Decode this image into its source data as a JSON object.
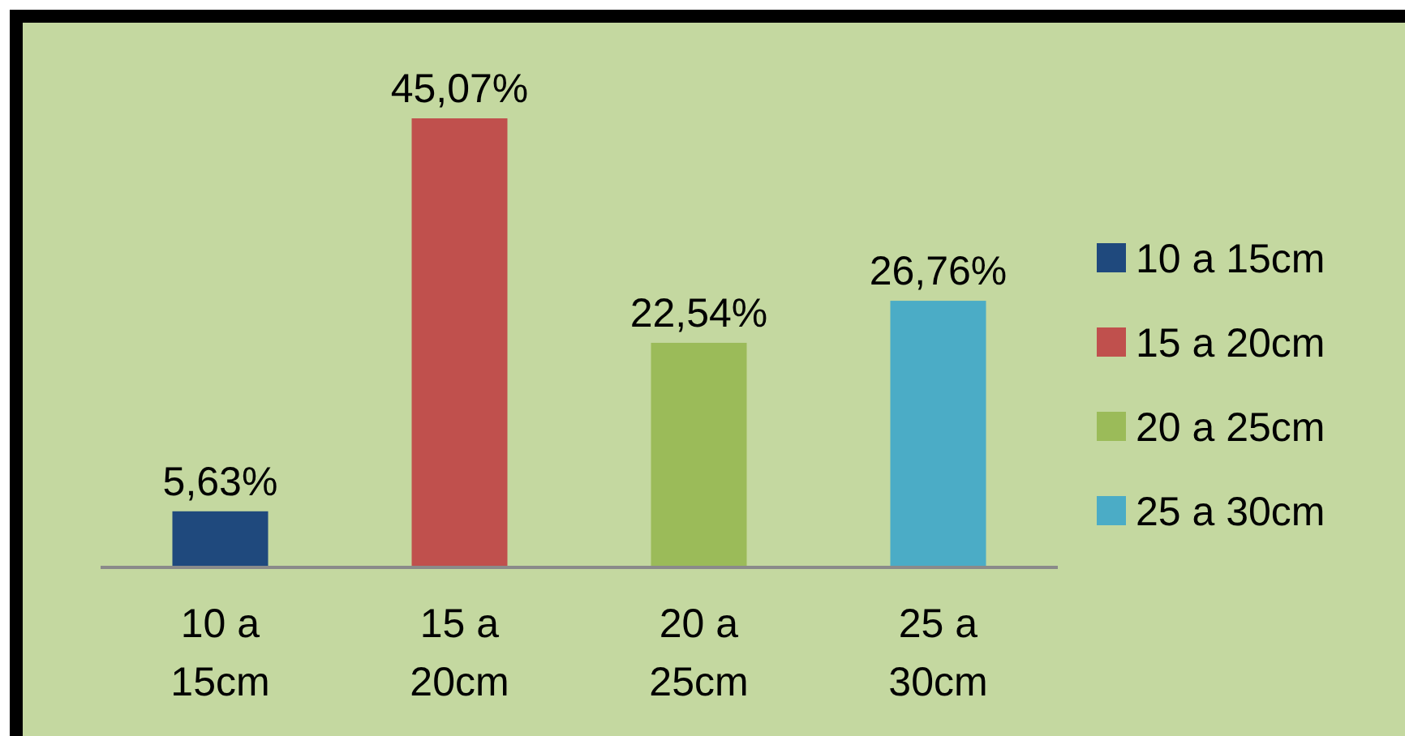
{
  "chart_data": {
    "type": "bar",
    "categories": [
      "10 a 15cm",
      "15 a 20cm",
      "20 a 25cm",
      "25 a 30cm"
    ],
    "series": [
      {
        "name": "10 a 15cm",
        "color": "#1f497d",
        "values": [
          5.63,
          null,
          null,
          null
        ],
        "value_labels": [
          "5,63%",
          null,
          null,
          null
        ]
      },
      {
        "name": "15 a 20cm",
        "color": "#c0504d",
        "values": [
          null,
          45.07,
          null,
          null
        ],
        "value_labels": [
          null,
          "45,07%",
          null,
          null
        ]
      },
      {
        "name": "20 a 25cm",
        "color": "#9bbb59",
        "values": [
          null,
          null,
          22.54,
          null
        ],
        "value_labels": [
          null,
          null,
          "22,54%",
          null
        ]
      },
      {
        "name": "25 a 30cm",
        "color": "#4bacc6",
        "values": [
          null,
          null,
          null,
          26.76
        ],
        "value_labels": [
          null,
          null,
          null,
          "26,76%"
        ]
      }
    ],
    "legend": "right"
  }
}
